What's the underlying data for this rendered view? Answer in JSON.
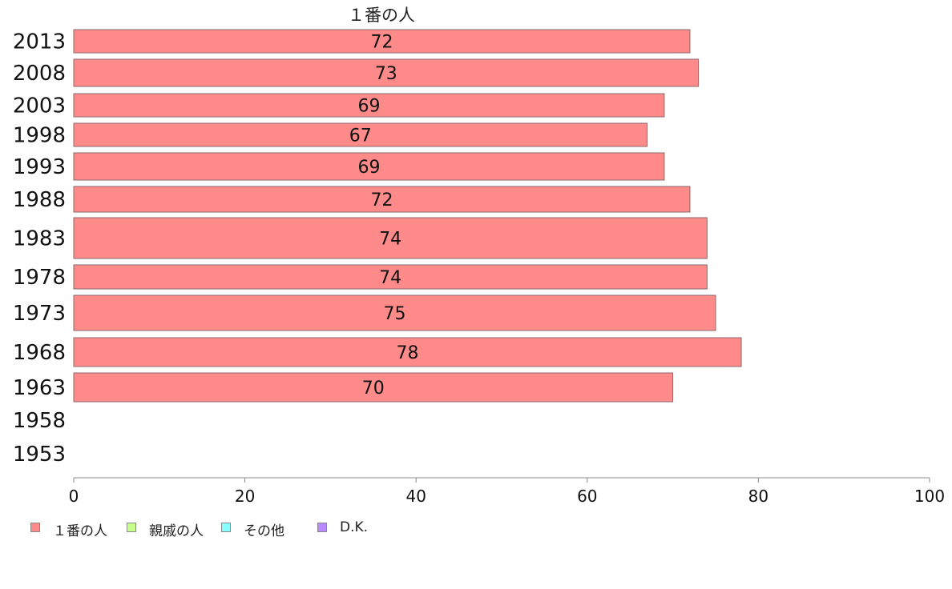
{
  "chart_data": {
    "type": "bar",
    "orientation": "horizontal",
    "series_title": "１番の人",
    "categories": [
      "2013",
      "2008",
      "2003",
      "1998",
      "1993",
      "1988",
      "1983",
      "1978",
      "1973",
      "1968",
      "1963",
      "1958",
      "1953"
    ],
    "values": [
      72,
      73,
      69,
      67,
      69,
      72,
      74,
      74,
      75,
      78,
      70,
      null,
      null
    ],
    "xlim": [
      0,
      100
    ],
    "x_ticks": [
      0,
      20,
      40,
      60,
      80,
      100
    ],
    "legend_position": "bottom-left",
    "legend": [
      {
        "label": "１番の人",
        "color": "#ff8a8a"
      },
      {
        "label": "親戚の人",
        "color": "#c6ff8a"
      },
      {
        "label": "その他",
        "color": "#8affff"
      },
      {
        "label": "D.K.",
        "color": "#b98aff"
      }
    ],
    "bar_color": "#ff8a8a"
  }
}
